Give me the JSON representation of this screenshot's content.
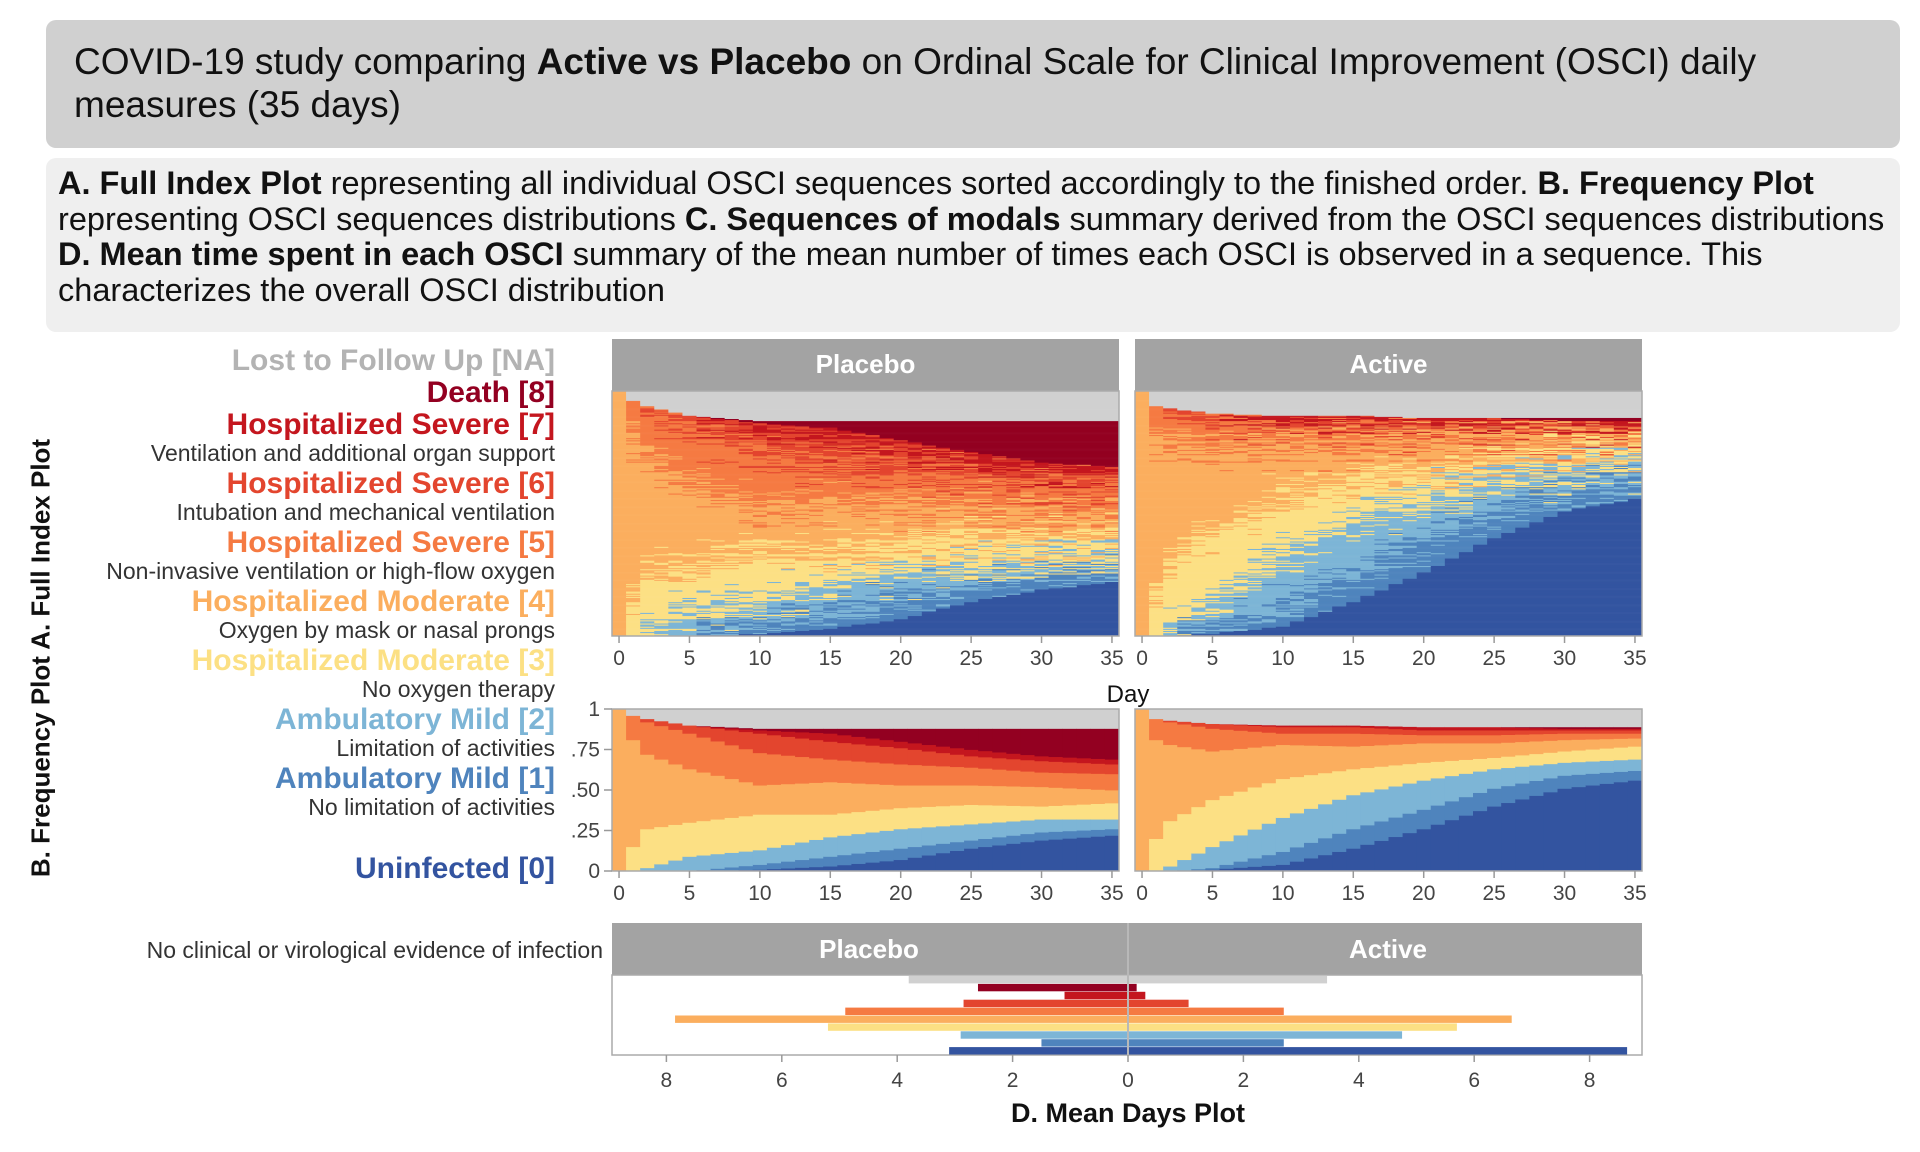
{
  "title": {
    "prefix": "COVID-19 study comparing ",
    "bold": "Active vs Placebo",
    "suffix": " on Ordinal Scale for Clinical Improvement (OSCI) daily measures (35 days)"
  },
  "description": [
    {
      "bold": "A. Full Index Plot",
      "text": " representing all individual OSCI sequences sorted accordingly to the finished order. "
    },
    {
      "bold": "B. Frequency Plot",
      "text": " representing OSCI sequences distributions "
    },
    {
      "bold": "C. Sequences of modals",
      "text": " summary derived from the OSCI sequences distributions "
    },
    {
      "bold": "D. Mean time spent in each OSCI",
      "text": " summary of the mean number of times each OSCI is observed in a sequence. This characterizes the overall OSCI distribution"
    }
  ],
  "side_label": "B. Frequency Plot A. Full Index Plot",
  "levels": [
    {
      "code": "0",
      "group_label": "Uninfected [0]",
      "label": "No clinical or virological evidence of infection",
      "color": "#3354a0"
    },
    {
      "code": "1",
      "group_label": "Ambulatory Mild [1]",
      "label": "No limitation of activities",
      "color": "#4f84bd"
    },
    {
      "code": "2",
      "group_label": "Ambulatory Mild [2]",
      "label": "Limitation of activities",
      "color": "#7db5d6"
    },
    {
      "code": "3",
      "group_label": "Hospitalized Moderate [3]",
      "label": "No oxygen therapy",
      "color": "#fce084"
    },
    {
      "code": "4",
      "group_label": "Hospitalized Moderate [4]",
      "label": "Oxygen by mask or nasal prongs",
      "color": "#fbae5e"
    },
    {
      "code": "5",
      "group_label": "Hospitalized Severe [5]",
      "label": "Non-invasive ventilation or high-flow oxygen",
      "color": "#f57a42"
    },
    {
      "code": "6",
      "group_label": "Hospitalized Severe [6]",
      "label": "Intubation and mechanical ventilation",
      "color": "#e3452e"
    },
    {
      "code": "7",
      "group_label": "Hospitalized Severe [7]",
      "label": "Ventilation and additional organ support",
      "color": "#c4161e"
    },
    {
      "code": "8",
      "group_label": "Death [8]",
      "label": "",
      "color": "#930021"
    },
    {
      "code": "NA",
      "group_label": "Lost to Follow Up [NA]",
      "label": "",
      "color": "#d0d0d0",
      "text_color": "#b3b3b3"
    }
  ],
  "arms": [
    "Placebo",
    "Active"
  ],
  "chart_data": [
    {
      "type": "index",
      "title": "A. Full Index Plot",
      "xlabel": "Day",
      "x_ticks": [
        "0",
        "5",
        "10",
        "15",
        "20",
        "25",
        "30",
        "35"
      ],
      "xlim": [
        0,
        35
      ],
      "panels": [
        "Placebo",
        "Active"
      ]
    },
    {
      "type": "area",
      "stacked": true,
      "title": "B. Frequency Plot",
      "ylim": [
        0,
        1
      ],
      "y_ticks": [
        "0",
        ".25",
        ".50",
        ".75",
        "1"
      ],
      "x_ticks": [
        "0",
        "5",
        "10",
        "15",
        "20",
        "25",
        "30",
        "35"
      ],
      "xlim": [
        0,
        35
      ],
      "level_order": [
        "0",
        "1",
        "2",
        "3",
        "4",
        "5",
        "6",
        "7",
        "8",
        "NA"
      ],
      "days": [
        0,
        1,
        2,
        5,
        10,
        15,
        20,
        25,
        30,
        35
      ],
      "series": [
        {
          "name": "Placebo",
          "proportions": [
            [
              0,
              0,
              0,
              0,
              1,
              0,
              0,
              0,
              0,
              0
            ],
            [
              0,
              0,
              0,
              0.15,
              0.66,
              0.15,
              0,
              0,
              0,
              0.04
            ],
            [
              0,
              0,
              0.02,
              0.24,
              0.46,
              0.2,
              0.02,
              0,
              0,
              0.06
            ],
            [
              0,
              0,
              0.09,
              0.21,
              0.33,
              0.22,
              0.05,
              0,
              0,
              0.1
            ],
            [
              0.01,
              0.03,
              0.09,
              0.22,
              0.18,
              0.2,
              0.12,
              0.02,
              0.01,
              0.12
            ],
            [
              0.03,
              0.06,
              0.12,
              0.14,
              0.2,
              0.14,
              0.11,
              0.05,
              0.03,
              0.12
            ],
            [
              0.07,
              0.07,
              0.12,
              0.13,
              0.14,
              0.13,
              0.1,
              0.04,
              0.08,
              0.12
            ],
            [
              0.14,
              0.05,
              0.1,
              0.12,
              0.12,
              0.11,
              0.07,
              0.04,
              0.13,
              0.12
            ],
            [
              0.19,
              0.05,
              0.08,
              0.08,
              0.12,
              0.09,
              0.07,
              0.03,
              0.17,
              0.12
            ],
            [
              0.22,
              0.04,
              0.06,
              0.1,
              0.08,
              0.1,
              0.06,
              0.03,
              0.19,
              0.12
            ]
          ]
        },
        {
          "name": "Active",
          "proportions": [
            [
              0,
              0,
              0,
              0,
              1,
              0,
              0,
              0,
              0,
              0
            ],
            [
              0,
              0,
              0,
              0.2,
              0.61,
              0.13,
              0,
              0,
              0,
              0.06
            ],
            [
              0,
              0,
              0.03,
              0.28,
              0.47,
              0.14,
              0.01,
              0,
              0,
              0.07
            ],
            [
              0.01,
              0.01,
              0.13,
              0.29,
              0.3,
              0.14,
              0.03,
              0,
              0,
              0.09
            ],
            [
              0.04,
              0.08,
              0.21,
              0.24,
              0.21,
              0.07,
              0.04,
              0.01,
              0,
              0.1
            ],
            [
              0.14,
              0.12,
              0.21,
              0.16,
              0.14,
              0.08,
              0.04,
              0.01,
              0,
              0.1
            ],
            [
              0.26,
              0.12,
              0.18,
              0.11,
              0.12,
              0.05,
              0.03,
              0.02,
              0,
              0.11
            ],
            [
              0.4,
              0.11,
              0.12,
              0.07,
              0.09,
              0.05,
              0.03,
              0.02,
              0,
              0.11
            ],
            [
              0.51,
              0.08,
              0.08,
              0.07,
              0.07,
              0.04,
              0.02,
              0.01,
              0.01,
              0.11
            ],
            [
              0.56,
              0.06,
              0.07,
              0.08,
              0.05,
              0.03,
              0.02,
              0.01,
              0.01,
              0.11
            ]
          ]
        }
      ]
    },
    {
      "type": "bar",
      "orientation": "horizontal-mirrored",
      "title": "D. Mean Days Plot",
      "categories": [
        "NA",
        "8",
        "7",
        "6",
        "5",
        "4",
        "3",
        "2",
        "1",
        "0"
      ],
      "x_ticks": [
        "8",
        "6",
        "4",
        "2",
        "0",
        "2",
        "4",
        "6",
        "8"
      ],
      "xlim": [
        -9,
        9
      ],
      "series": [
        {
          "name": "Placebo",
          "values": [
            3.8,
            2.6,
            1.1,
            2.85,
            4.9,
            7.85,
            5.2,
            2.9,
            1.5,
            3.1
          ]
        },
        {
          "name": "Active",
          "values": [
            3.45,
            0.15,
            0.3,
            1.05,
            2.7,
            6.65,
            5.7,
            4.75,
            2.7,
            8.65
          ]
        }
      ]
    }
  ]
}
